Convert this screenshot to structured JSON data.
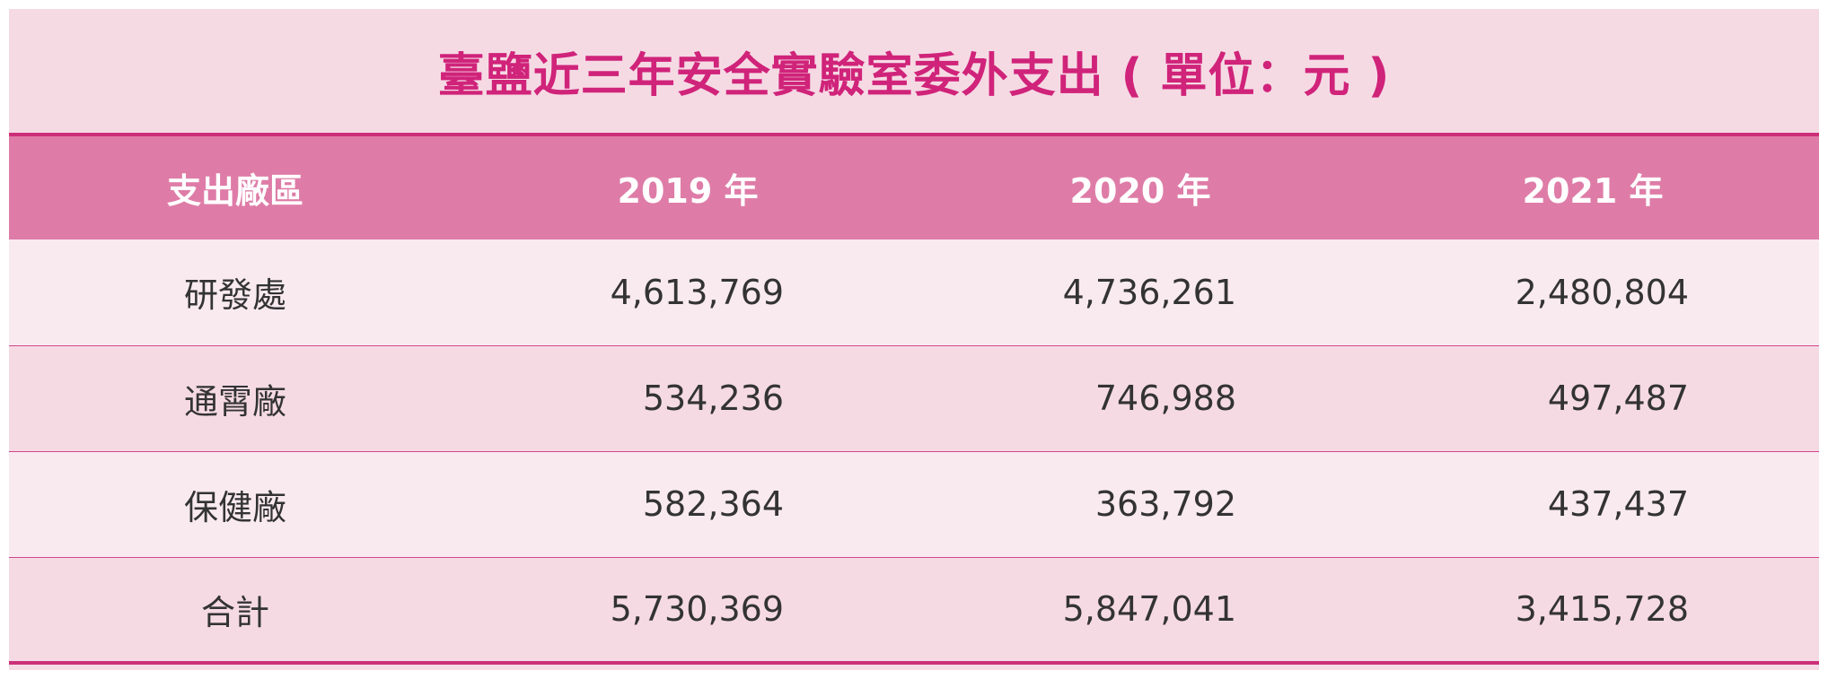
{
  "title": "臺鹽近三年安全實驗室委外支出 ( 單位：元 )",
  "columns": [
    "支出廠區",
    "2019 年",
    "2020 年",
    "2021 年"
  ],
  "rows": [
    {
      "label": "研發處",
      "values": [
        "4,613,769",
        "4,736,261",
        "2,480,804"
      ]
    },
    {
      "label": "通霄廠",
      "values": [
        "534,236",
        "746,988",
        "497,487"
      ]
    },
    {
      "label": "保健廠",
      "values": [
        "582,364",
        "363,792",
        "437,437"
      ]
    },
    {
      "label": "合計",
      "values": [
        "5,730,369",
        "5,847,041",
        "3,415,728"
      ]
    }
  ],
  "colors": {
    "title": "#d0237a",
    "header_bg": "#de7ca7",
    "row_light": "#f9eaf0",
    "row_dark": "#f5dae4",
    "rule": "#cc2f78"
  }
}
